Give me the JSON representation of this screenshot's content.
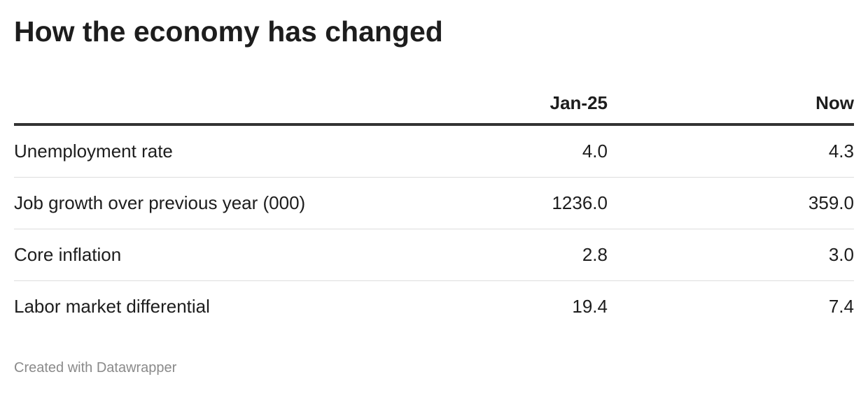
{
  "header": {
    "title": "How the economy has changed"
  },
  "table": {
    "columns": [
      "Jan-25",
      "Now"
    ],
    "rows": [
      [
        "Unemployment rate",
        "4.0",
        "4.3"
      ],
      [
        "Job growth over previous year (000)",
        "1236.0",
        "359.0"
      ],
      [
        "Core inflation",
        "2.8",
        "3.0"
      ],
      [
        "Labor market differential",
        "19.4",
        "7.4"
      ]
    ]
  },
  "footer": {
    "credit": "Created with Datawrapper"
  }
}
